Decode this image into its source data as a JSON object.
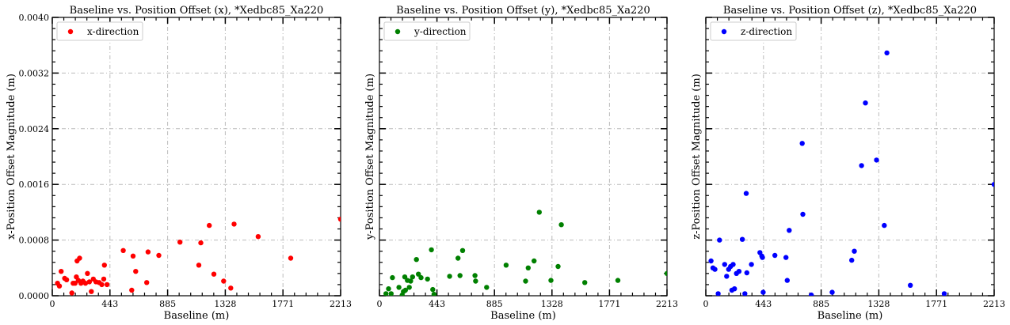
{
  "chart_data": [
    {
      "type": "scatter",
      "title": "Baseline vs. Position Offset (x), *Xedbc85_Xa220",
      "xlabel": "Baseline (m)",
      "ylabel": "x-Position Offset Magnitude (m)",
      "xlim": [
        0,
        2213
      ],
      "ylim": [
        0,
        0.004
      ],
      "xticks": [
        "0",
        "443",
        "885",
        "1328",
        "1771",
        "2213"
      ],
      "yticks": [
        "0.0000",
        "0.0008",
        "0.0016",
        "0.0024",
        "0.0032",
        "0.0040"
      ],
      "grid": true,
      "legend_position": "top-left",
      "series": [
        {
          "name": "x-direction",
          "color": "#ff0000",
          "points": [
            [
              40,
              0.00018
            ],
            [
              55,
              0.00014
            ],
            [
              68,
              0.00035
            ],
            [
              95,
              0.00025
            ],
            [
              110,
              0.00023
            ],
            [
              150,
              4e-05
            ],
            [
              160,
              0.00018
            ],
            [
              175,
              0.00018
            ],
            [
              185,
              0.00027
            ],
            [
              190,
              0.0005
            ],
            [
              200,
              0.00022
            ],
            [
              210,
              0.00054
            ],
            [
              220,
              0.00018
            ],
            [
              235,
              0.00021
            ],
            [
              255,
              0.00018
            ],
            [
              270,
              0.00032
            ],
            [
              285,
              0.0002
            ],
            [
              300,
              6e-05
            ],
            [
              315,
              0.00024
            ],
            [
              335,
              0.0002
            ],
            [
              360,
              0.00019
            ],
            [
              380,
              0.00016
            ],
            [
              395,
              0.00024
            ],
            [
              400,
              0.00044
            ],
            [
              420,
              0.00016
            ],
            [
              545,
              0.00065
            ],
            [
              610,
              8e-05
            ],
            [
              620,
              0.00057
            ],
            [
              640,
              0.00035
            ],
            [
              725,
              0.00019
            ],
            [
              735,
              0.00063
            ],
            [
              818,
              0.00058
            ],
            [
              980,
              0.00077
            ],
            [
              1125,
              0.00044
            ],
            [
              1140,
              0.00076
            ],
            [
              1205,
              0.00101
            ],
            [
              1240,
              0.00031
            ],
            [
              1315,
              0.00021
            ],
            [
              1370,
              0.00011
            ],
            [
              1395,
              0.00103
            ],
            [
              1580,
              0.00085
            ],
            [
              1830,
              0.00054
            ],
            [
              2213,
              0.0011
            ]
          ]
        }
      ]
    },
    {
      "type": "scatter",
      "title": "Baseline vs. Position Offset (y), *Xedbc85_Xa220",
      "xlabel": "Baseline (m)",
      "ylabel": "y-Position Offset Magnitude (m)",
      "xlim": [
        0,
        2213
      ],
      "ylim": [
        0,
        0.004
      ],
      "xticks": [
        "0",
        "443",
        "885",
        "1328",
        "1771",
        "2213"
      ],
      "yticks": [],
      "grid": true,
      "legend_position": "top-left",
      "series": [
        {
          "name": "y-direction",
          "color": "#008000",
          "points": [
            [
              50,
              3e-05
            ],
            [
              70,
              0.0001
            ],
            [
              90,
              3e-05
            ],
            [
              100,
              0.00026
            ],
            [
              150,
              0.00012
            ],
            [
              175,
              1e-05
            ],
            [
              185,
              6e-05
            ],
            [
              195,
              0.00027
            ],
            [
              200,
              8e-05
            ],
            [
              215,
              0.00022
            ],
            [
              230,
              0.00012
            ],
            [
              240,
              0.00021
            ],
            [
              255,
              0.00027
            ],
            [
              285,
              0.00052
            ],
            [
              300,
              0.00031
            ],
            [
              320,
              0.00026
            ],
            [
              370,
              0.00024
            ],
            [
              400,
              0.00066
            ],
            [
              410,
              9e-05
            ],
            [
              420,
              2e-05
            ],
            [
              540,
              0.00028
            ],
            [
              605,
              0.00054
            ],
            [
              620,
              0.00029
            ],
            [
              640,
              0.00065
            ],
            [
              735,
              0.00029
            ],
            [
              740,
              0.00021
            ],
            [
              825,
              0.00012
            ],
            [
              975,
              0.00044
            ],
            [
              1125,
              0.00021
            ],
            [
              1145,
              0.0004
            ],
            [
              1190,
              0.0005
            ],
            [
              1230,
              0.0012
            ],
            [
              1320,
              0.00022
            ],
            [
              1375,
              0.00042
            ],
            [
              1400,
              0.00102
            ],
            [
              1580,
              0.00019
            ],
            [
              1835,
              0.00022
            ],
            [
              2213,
              0.00032
            ]
          ]
        }
      ]
    },
    {
      "type": "scatter",
      "title": "Baseline vs. Position Offset (z), *Xedbc85_Xa220",
      "xlabel": "Baseline (m)",
      "ylabel": "z-Position Offset Magnitude (m)",
      "xlim": [
        0,
        2213
      ],
      "ylim": [
        0,
        0.004
      ],
      "xticks": [
        "0",
        "443",
        "885",
        "1328",
        "1771",
        "2213"
      ],
      "yticks": [],
      "grid": true,
      "legend_position": "top-left",
      "series": [
        {
          "name": "z-direction",
          "color": "#0000ff",
          "points": [
            [
              40,
              0.0005
            ],
            [
              55,
              0.0004
            ],
            [
              70,
              0.00038
            ],
            [
              95,
              3e-05
            ],
            [
              105,
              0.0008
            ],
            [
              145,
              0.00045
            ],
            [
              160,
              0.00028
            ],
            [
              175,
              0.00038
            ],
            [
              190,
              0.00042
            ],
            [
              200,
              8e-05
            ],
            [
              210,
              0.00045
            ],
            [
              220,
              0.0001
            ],
            [
              235,
              0.00032
            ],
            [
              255,
              0.00035
            ],
            [
              280,
              0.00081
            ],
            [
              300,
              3e-05
            ],
            [
              310,
              0.00147
            ],
            [
              315,
              0.00033
            ],
            [
              350,
              0.00045
            ],
            [
              415,
              0.00062
            ],
            [
              430,
              0.00057
            ],
            [
              435,
              0.00055
            ],
            [
              440,
              5e-05
            ],
            [
              530,
              0.00058
            ],
            [
              615,
              0.00055
            ],
            [
              625,
              0.00022
            ],
            [
              640,
              0.00094
            ],
            [
              740,
              0.00219
            ],
            [
              745,
              0.00117
            ],
            [
              810,
              1e-05
            ],
            [
              970,
              5e-05
            ],
            [
              1120,
              0.00051
            ],
            [
              1140,
              0.00064
            ],
            [
              1195,
              0.00187
            ],
            [
              1225,
              0.00277
            ],
            [
              1310,
              0.00195
            ],
            [
              1370,
              0.00101
            ],
            [
              1390,
              0.00349
            ],
            [
              1570,
              0.00015
            ],
            [
              1830,
              3e-05
            ],
            [
              2213,
              0.0016
            ]
          ]
        }
      ]
    }
  ]
}
